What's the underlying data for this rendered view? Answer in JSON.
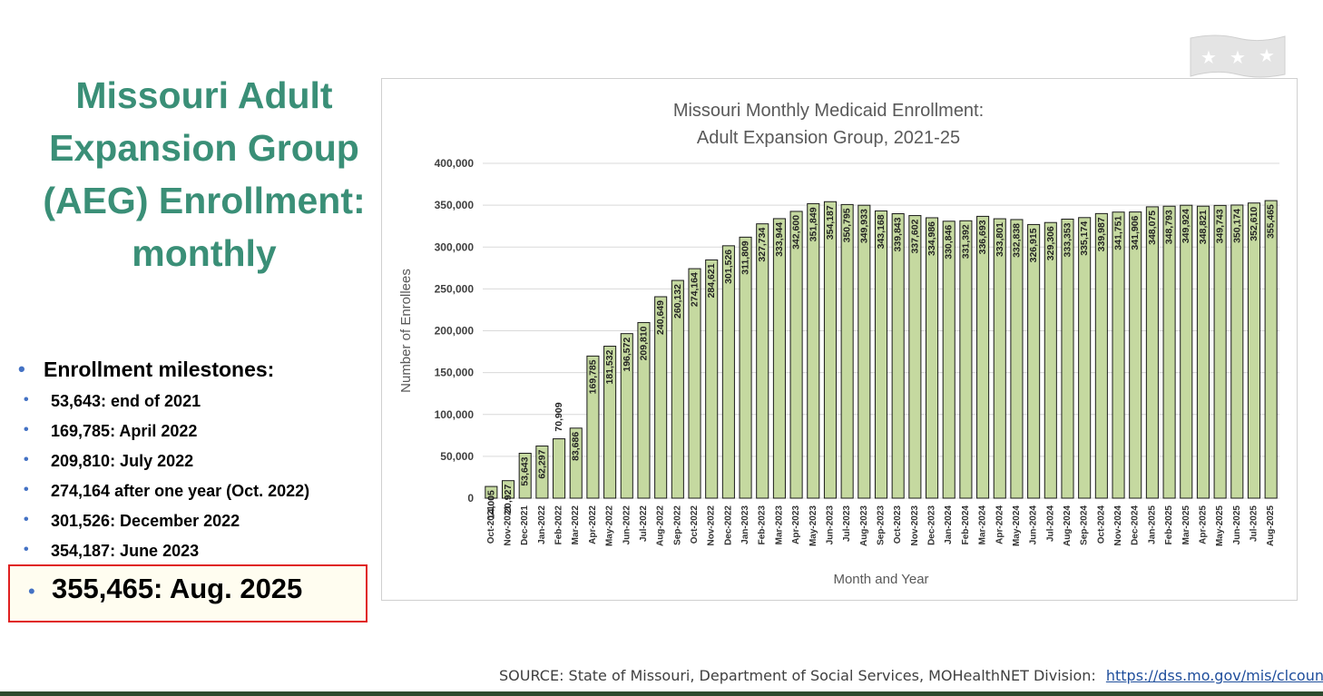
{
  "slide": {
    "title_lines": [
      "Missouri Adult",
      "Expansion Group",
      "(AEG) Enrollment:",
      "monthly"
    ],
    "milestones_heading": "Enrollment milestones:",
    "milestones": [
      "53,643: end of 2021",
      "169,785: April 2022",
      "209,810: July 2022",
      "274,164 after one year (Oct. 2022)",
      "301,526: December 2022",
      "354,187: June 2023"
    ],
    "highlight": "355,465: Aug. 2025",
    "source_text": "SOURCE: State of Missouri, Department of Social Services, MOHealthNET Division:",
    "source_link": "https://dss.mo.gov/mis/clcounter/",
    "logo_icon": "missouri-flag-stars-icon"
  },
  "colors": {
    "title_green": "#3a8f77",
    "bullet_blue": "#4472c4",
    "bar_fill": "#c5d9a0",
    "bar_stroke": "#1a1a1a",
    "highlight_border": "#e02020"
  },
  "chart_data": {
    "type": "bar",
    "title": "Missouri Monthly Medicaid Enrollment:",
    "subtitle": "Adult Expansion Group, 2021-25",
    "xlabel": "Month and Year",
    "ylabel": "Number of Enrollees",
    "ylim": [
      0,
      400000
    ],
    "yticks": [
      0,
      50000,
      100000,
      150000,
      200000,
      250000,
      300000,
      350000,
      400000
    ],
    "ytick_labels": [
      "0",
      "50,000",
      "100,000",
      "150,000",
      "200,000",
      "250,000",
      "300,000",
      "350,000",
      "400,000"
    ],
    "grid": true,
    "categories": [
      "Oct-2021",
      "Nov-2021",
      "Dec-2021",
      "Jan-2022",
      "Feb-2022",
      "Mar-2022",
      "Apr-2022",
      "May-2022",
      "Jun-2022",
      "Jul-2022",
      "Aug-2022",
      "Sep-2022",
      "Oct-2022",
      "Nov-2022",
      "Dec-2022",
      "Jan-2023",
      "Feb-2023",
      "Mar-2023",
      "Apr-2023",
      "May-2023",
      "Jun-2023",
      "Jul-2023",
      "Aug-2023",
      "Sep-2023",
      "Oct-2023",
      "Nov-2023",
      "Dec-2023",
      "Jan-2024",
      "Feb-2024",
      "Mar-2024",
      "Apr-2024",
      "May-2024",
      "Jun-2024",
      "Jul-2024",
      "Aug-2024",
      "Sep-2024",
      "Oct-2024",
      "Nov-2024",
      "Dec-2024",
      "Jan-2025",
      "Feb-2025",
      "Mar-2025",
      "Apr-2025",
      "May-2025",
      "Jun-2025",
      "Jul-2025",
      "Aug-2025"
    ],
    "values": [
      14005,
      20927,
      53643,
      62297,
      70909,
      83686,
      169785,
      181532,
      196572,
      209810,
      240649,
      260132,
      274164,
      284621,
      301526,
      311809,
      327734,
      333944,
      342600,
      351849,
      354187,
      350795,
      349933,
      343168,
      339843,
      337602,
      334986,
      330846,
      331392,
      336693,
      333801,
      332838,
      326915,
      329306,
      333353,
      335174,
      339987,
      341751,
      341906,
      348075,
      348793,
      349924,
      348821,
      349743,
      350174,
      352610,
      355465
    ],
    "value_labels": [
      "14,005",
      "20,927",
      "53,643",
      "62,297",
      "",
      "83,686",
      "169,785",
      "181,532",
      "196,572",
      "209,810",
      "240,649",
      "260,132",
      "274,164",
      "284,621",
      "301,526",
      "311,809",
      "327,734",
      "333,944",
      "342,600",
      "351,849",
      "354,187",
      "350,795",
      "349,933",
      "343,168",
      "339,843",
      "337,602",
      "334,986",
      "330,846",
      "331,392",
      "336,693",
      "333,801",
      "332,838",
      "326,915",
      "329,306",
      "333,353",
      "335,174",
      "339,987",
      "341,751",
      "341,906",
      "348,075",
      "348,793",
      "349,924",
      "348,821",
      "349,743",
      "350,174",
      "352,610",
      "355,465"
    ],
    "above_labels": {
      "4": "70,909"
    }
  }
}
